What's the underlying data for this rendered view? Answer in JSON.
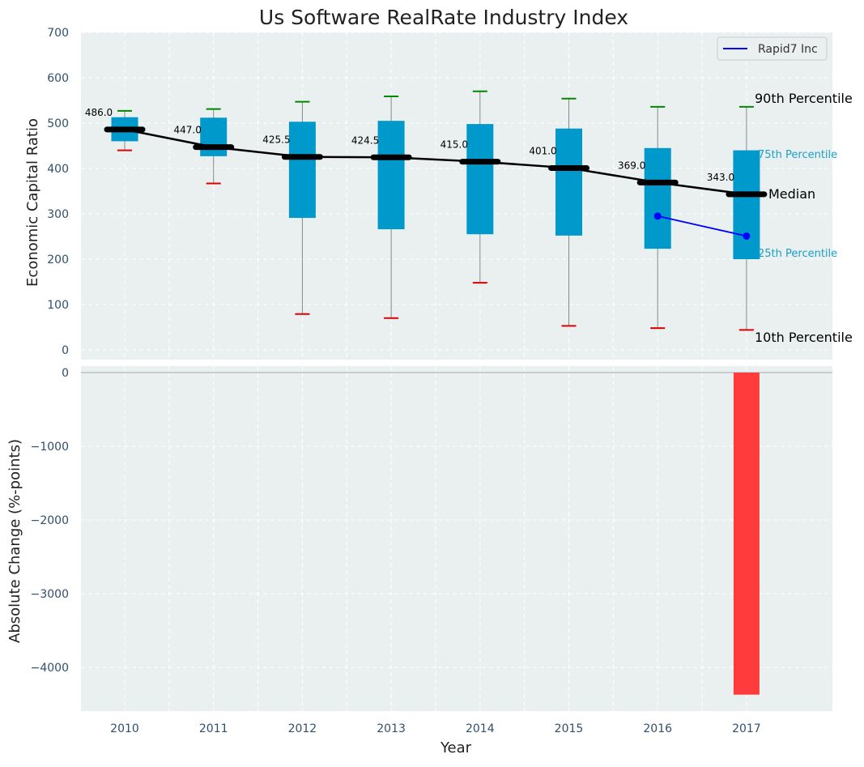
{
  "chart_data": [
    {
      "type": "box",
      "title": "Us Software RealRate Industry Index",
      "ylabel": "Economic Capital Ratio",
      "ylim": [
        0,
        700
      ],
      "yticks": [
        0,
        100,
        200,
        300,
        400,
        500,
        600,
        700
      ],
      "grid": true,
      "categories": [
        "2010",
        "2011",
        "2012",
        "2013",
        "2014",
        "2015",
        "2016",
        "2017"
      ],
      "boxes": [
        {
          "year": "2010",
          "p10": 440,
          "p25": 460,
          "median": 486.0,
          "p75": 513,
          "p90": 527
        },
        {
          "year": "2011",
          "p10": 367,
          "p25": 427,
          "median": 447.0,
          "p75": 512,
          "p90": 531
        },
        {
          "year": "2012",
          "p10": 79,
          "p25": 291,
          "median": 425.5,
          "p75": 503,
          "p90": 547
        },
        {
          "year": "2013",
          "p10": 70,
          "p25": 266,
          "median": 424.5,
          "p75": 505,
          "p90": 559
        },
        {
          "year": "2014",
          "p10": 148,
          "p25": 255,
          "median": 415.0,
          "p75": 498,
          "p90": 570
        },
        {
          "year": "2015",
          "p10": 53,
          "p25": 252,
          "median": 401.0,
          "p75": 488,
          "p90": 554
        },
        {
          "year": "2016",
          "p10": 48,
          "p25": 223,
          "median": 369.0,
          "p75": 445,
          "p90": 536
        },
        {
          "year": "2017",
          "p10": 44,
          "p25": 200,
          "median": 343.0,
          "p75": 440,
          "p90": 536
        }
      ],
      "median_labels": [
        "486.0",
        "447.0",
        "425.5",
        "424.5",
        "415.0",
        "401.0",
        "369.0",
        "343.0"
      ],
      "series": [
        {
          "name": "Rapid7 Inc",
          "x": [
            "2016",
            "2017"
          ],
          "values": [
            295,
            251
          ],
          "color": "#0000ff"
        }
      ],
      "legend": {
        "position": "top-right",
        "entries": [
          "Rapid7 Inc"
        ]
      },
      "annotations": {
        "p90": "90th Percentile",
        "p75": "75th Percentile",
        "median": "Median",
        "p25": "25th Percentile",
        "p10": "10th Percentile"
      },
      "colors": {
        "box": "#0099cc",
        "whisker": "#888888",
        "p90_cap": "#008800",
        "p10_cap": "#dd0000",
        "median_line": "#000000",
        "background": "#eaeff0",
        "annotation_blue": "#1aa0c8"
      }
    },
    {
      "type": "bar",
      "ylabel": "Absolute Change (%-points)",
      "xlabel": "Year",
      "ylim": [
        -4600,
        0
      ],
      "yticks": [
        0,
        -1000,
        -2000,
        -3000,
        -4000
      ],
      "ytick_labels": [
        "0",
        "−1000",
        "−2000",
        "−3000",
        "−4000"
      ],
      "categories": [
        "2010",
        "2011",
        "2012",
        "2013",
        "2014",
        "2015",
        "2016",
        "2017"
      ],
      "values": [
        null,
        null,
        null,
        null,
        null,
        null,
        null,
        -4370
      ],
      "grid": true,
      "colors": {
        "bar": "#ff3b3b",
        "zero_line": "#aaaaaa"
      }
    }
  ]
}
